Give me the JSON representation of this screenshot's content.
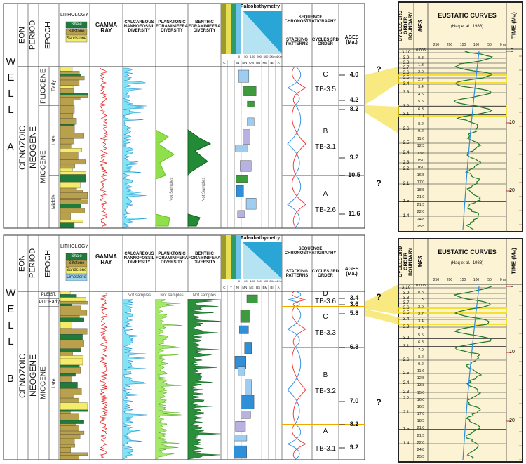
{
  "wells": [
    {
      "label": "WELL",
      "name": "A",
      "eon": "CENOZOIC",
      "period": "NEOGENE",
      "headers": {
        "eon": "EON",
        "period": "PERIOD",
        "epoch": "EPOCH",
        "lithology": "LITHOLOGY",
        "gamma": "GAMMA RAY",
        "nanno": "CALCAREOUS NANNOFOSSIL DIVERSITY",
        "planktonic": "PLANKTONIC FORAMINIFERA DIVERSITY",
        "benthic": "BENTHIC FORAMINIFERA DIVERSITY",
        "bathymetry": "Paleobathymetry",
        "sequence": "SEQUENCE CHRONOSTRATIGRAPHY",
        "stacking": "STACKING PATTERNS",
        "cycles": "CYCLES 3RD ORDER",
        "ages": "AGES (Ma.)"
      },
      "lithology_legend": [
        "Shale",
        "Siltstone",
        "Sandstone"
      ],
      "bathymetry_scale": [
        "0",
        "50",
        "100",
        "200",
        "500",
        "2Km",
        "4Km"
      ],
      "bathymetry_zones": [
        "C",
        "T",
        "IN",
        "MN",
        "ON",
        "UB",
        "MB",
        "IB",
        "A"
      ],
      "epochs": [
        {
          "name": "PLIOCENE",
          "subs": [
            "Early"
          ]
        },
        {
          "name": "MIOCENE",
          "subs": [
            "Late",
            "Middle"
          ]
        }
      ],
      "not_samples": [
        "Not Samples",
        "Not Samples"
      ],
      "cycles": [
        {
          "letter": "C",
          "name": "TB-3.5"
        },
        {
          "letter": "B",
          "name": "TB-3.1"
        },
        {
          "letter": "A",
          "name": "TB-2.6"
        }
      ],
      "ages": [
        "4.0",
        "4.2",
        "8.2",
        "9.2",
        "10.5",
        "11.6"
      ]
    },
    {
      "label": "WELL",
      "name": "B",
      "eon": "CENOZOIC",
      "period": "NEOGENE",
      "headers": {
        "eon": "EON",
        "period": "PERIOD",
        "epoch": "EPOCH",
        "lithology": "LITHOLOGY",
        "gamma": "GAMMA RAY",
        "nanno": "CALCAREOUS NANNOFOSSIL DIVERSITY",
        "planktonic": "PLANKTONIC FORAMINIFERA DIVERSITY",
        "benthic": "BENTHIC FORAMINIFERA DIVERSITY",
        "bathymetry": "Paleobathymetry",
        "sequence": "SEQUENCE CHRONOSTRATIGRAPHY",
        "stacking": "STACKING PATTERNS",
        "cycles": "CYCLES 3RD ORDER",
        "ages": "AGES (Ma.)"
      },
      "lithology_legend": [
        "Shale",
        "Siltstone",
        "Sandstone",
        "Limestone"
      ],
      "bathymetry_scale": [
        "0",
        "50",
        "100",
        "200",
        "500",
        "2Km",
        "4Km"
      ],
      "bathymetry_zones": [
        "C",
        "T",
        "NI",
        "MN",
        "NE",
        "BS",
        "BM",
        "BI",
        "A"
      ],
      "epochs": [
        {
          "name": "PLEIST.",
          "subs": []
        },
        {
          "name": "PLIO",
          "subs": [
            "Early"
          ]
        },
        {
          "name": "MIOCENE",
          "subs": [
            "Late"
          ]
        }
      ],
      "not_samples": [
        "Not samples",
        "Not samples",
        "Not samples"
      ],
      "cycles": [
        {
          "letter": "D",
          "name": "TB-3.6"
        },
        {
          "letter": "C",
          "name": "TB-3.3"
        },
        {
          "letter": "B",
          "name": "TB-3.2"
        },
        {
          "letter": "A",
          "name": "TB-3.1"
        }
      ],
      "ages": [
        "3.4",
        "3.6",
        "5.8",
        "6.3",
        "7.0",
        "8.2",
        "9.2"
      ]
    }
  ],
  "question_marks": [
    "?",
    "?",
    "?",
    "?"
  ],
  "eustatic": [
    {
      "cycles_header": "CYCLES 3RD ORDER BOUNDARY",
      "mfs_header": "MFS",
      "title": "EUSTATIC CURVES",
      "source": "(Haq et al., 1988)",
      "time_header": "TIME (Ma)",
      "scale": [
        "250",
        "200",
        "150",
        "100",
        "50",
        "0 m"
      ],
      "boundaries": [
        "3.10",
        "3.9",
        "3.8",
        "3.7",
        "3.6",
        "3.5",
        "3.4",
        "3.3",
        "3.2",
        "3.1",
        "2.6",
        "2.5",
        "2.4",
        "2.3",
        "2.2",
        "2.1",
        "1.5",
        "1.4"
      ],
      "mfs": [
        "0.006",
        "0.8",
        "1.3",
        "2.0",
        "2.7",
        "3.4",
        "4.5",
        "5.5",
        "6.3",
        "7.0",
        "8.2",
        "9.2",
        "11.6",
        "12.5",
        "13.8",
        "15.0",
        "16.0",
        "16.5",
        "17.0",
        "18.5",
        "21.0",
        "21.5",
        "22.0",
        "24.8",
        "25.5"
      ],
      "time_ticks": [
        "0",
        "10",
        "20"
      ]
    },
    {
      "cycles_header": "CYCLES 3RD ORDER BOUNDARY",
      "mfs_header": "MFS",
      "title": "EUSTATIC CURVES",
      "source": "(Haq et al., 1988)",
      "time_header": "TIME (Ma)",
      "scale": [
        "250",
        "200",
        "150",
        "100",
        "50",
        "0 m"
      ],
      "boundaries": [
        "3.10",
        "3.9",
        "3.8",
        "3.7",
        "3.6",
        "3.5",
        "3.4",
        "3.3",
        "3.2",
        "3.1",
        "2.6",
        "2.5",
        "2.4",
        "2.3",
        "2.2",
        "2.1",
        "1.5",
        "1.4"
      ],
      "mfs": [
        "0.006",
        "0.8",
        "1.3",
        "2.0",
        "2.7",
        "3.4",
        "4.5",
        "5.5",
        "6.3",
        "7.0",
        "8.2",
        "9.2",
        "11.6",
        "12.5",
        "13.8",
        "15.0",
        "16.0",
        "16.5",
        "17.0",
        "18.5",
        "21.0",
        "21.5",
        "22.0",
        "24.8",
        "25.5"
      ],
      "time_ticks": [
        "0",
        "10",
        "20"
      ]
    }
  ]
}
